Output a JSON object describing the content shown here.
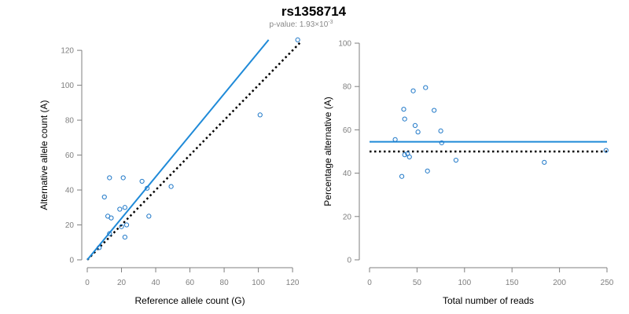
{
  "figure": {
    "title": "rs1358714",
    "subtitle_prefix": "p-value: 1.93×10",
    "subtitle_exponent": "-3"
  },
  "colors": {
    "points": "#1f78c8",
    "fit_line": "#1f8ad8",
    "reference_line": "#000000",
    "axis": "#7f7f7f"
  },
  "chart_data": [
    {
      "type": "scatter",
      "xlabel": "Reference allele count (G)",
      "ylabel": "Alternative allele count (A)",
      "xlim": [
        0,
        125
      ],
      "ylim": [
        0,
        125
      ],
      "xticks": [
        0,
        20,
        40,
        60,
        80,
        100,
        120
      ],
      "yticks": [
        0,
        20,
        40,
        60,
        80,
        100,
        120
      ],
      "points": [
        {
          "x": 7,
          "y": 7
        },
        {
          "x": 10,
          "y": 36
        },
        {
          "x": 12,
          "y": 25
        },
        {
          "x": 13,
          "y": 15
        },
        {
          "x": 13,
          "y": 47
        },
        {
          "x": 14,
          "y": 24
        },
        {
          "x": 19,
          "y": 29
        },
        {
          "x": 20,
          "y": 19
        },
        {
          "x": 21,
          "y": 47
        },
        {
          "x": 22,
          "y": 13
        },
        {
          "x": 22,
          "y": 30
        },
        {
          "x": 23,
          "y": 20
        },
        {
          "x": 32,
          "y": 45
        },
        {
          "x": 35,
          "y": 41
        },
        {
          "x": 36,
          "y": 25
        },
        {
          "x": 49,
          "y": 42
        },
        {
          "x": 101,
          "y": 83
        },
        {
          "x": 123,
          "y": 126
        }
      ],
      "fit_line": {
        "x": [
          0,
          106
        ],
        "y": [
          0,
          126
        ]
      },
      "reference_line": {
        "x": [
          0,
          125
        ],
        "y": [
          0,
          125
        ]
      }
    },
    {
      "type": "scatter",
      "xlabel": "Total number of reads",
      "ylabel": "Percentage alternative (A)",
      "xlim": [
        0,
        250
      ],
      "ylim": [
        0,
        100
      ],
      "xticks": [
        0,
        50,
        100,
        150,
        200,
        250
      ],
      "yticks": [
        0,
        20,
        40,
        60,
        80,
        100
      ],
      "points": [
        {
          "x": 27,
          "y": 55.5
        },
        {
          "x": 34,
          "y": 38.5
        },
        {
          "x": 36,
          "y": 69.5
        },
        {
          "x": 37,
          "y": 65
        },
        {
          "x": 37,
          "y": 48.5
        },
        {
          "x": 40,
          "y": 49
        },
        {
          "x": 42,
          "y": 47.5
        },
        {
          "x": 46,
          "y": 78
        },
        {
          "x": 48,
          "y": 62
        },
        {
          "x": 51,
          "y": 59
        },
        {
          "x": 59,
          "y": 79.5
        },
        {
          "x": 61,
          "y": 41
        },
        {
          "x": 68,
          "y": 69
        },
        {
          "x": 75,
          "y": 59.5
        },
        {
          "x": 76,
          "y": 54
        },
        {
          "x": 91,
          "y": 46
        },
        {
          "x": 184,
          "y": 45
        },
        {
          "x": 249,
          "y": 50.5
        }
      ],
      "fit_line": {
        "x": [
          0,
          250
        ],
        "y": [
          54.5,
          54.5
        ]
      },
      "reference_line": {
        "x": [
          0,
          250
        ],
        "y": [
          50,
          50
        ]
      }
    }
  ]
}
